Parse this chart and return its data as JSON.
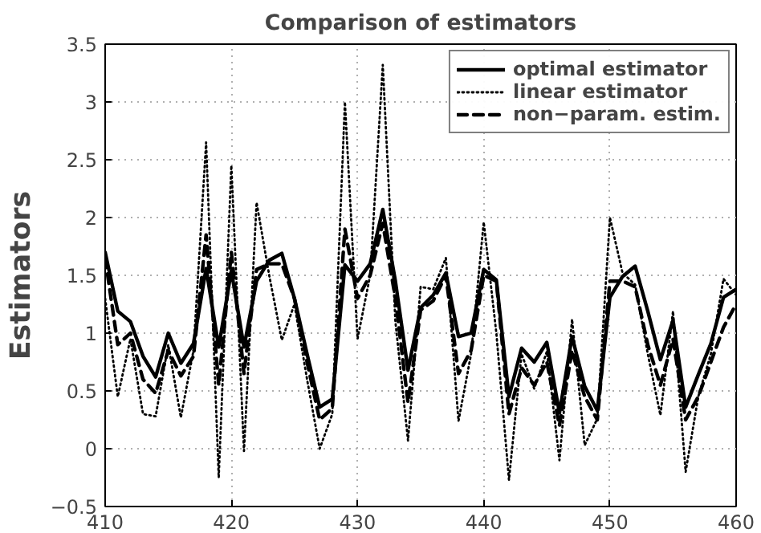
{
  "chart_data": {
    "type": "line",
    "title": "Comparison of estimators",
    "ylabel": "Estimators",
    "x": [
      410,
      411,
      412,
      413,
      414,
      415,
      416,
      417,
      418,
      419,
      420,
      421,
      422,
      423,
      424,
      425,
      426,
      427,
      428,
      429,
      430,
      431,
      432,
      433,
      434,
      435,
      436,
      437,
      438,
      439,
      440,
      441,
      442,
      443,
      444,
      445,
      446,
      447,
      448,
      449,
      450,
      451,
      452,
      453,
      454,
      455,
      456,
      457,
      458,
      459,
      460
    ],
    "series": [
      {
        "name": "optimal estimator",
        "color": "#000000",
        "line_style": "solid",
        "values": [
          1.7,
          1.19,
          1.1,
          0.8,
          0.62,
          1.0,
          0.74,
          0.91,
          1.56,
          0.88,
          1.54,
          0.88,
          1.45,
          1.63,
          1.69,
          1.3,
          0.82,
          0.36,
          0.43,
          1.59,
          1.45,
          1.6,
          2.07,
          1.45,
          0.68,
          1.22,
          1.33,
          1.52,
          0.97,
          1.0,
          1.55,
          1.46,
          0.45,
          0.87,
          0.75,
          0.92,
          0.31,
          0.97,
          0.54,
          0.33,
          1.31,
          1.49,
          1.58,
          1.19,
          0.77,
          1.11,
          0.36,
          0.64,
          0.91,
          1.31,
          1.38
        ]
      },
      {
        "name": "linear estimator",
        "color": "#000000",
        "line_style": "dotted",
        "values": [
          1.3,
          0.45,
          0.95,
          0.3,
          0.28,
          0.9,
          0.27,
          0.85,
          2.65,
          -0.25,
          2.45,
          -0.02,
          2.13,
          1.5,
          0.94,
          1.25,
          0.6,
          0.0,
          0.3,
          3.0,
          0.95,
          1.5,
          3.32,
          1.1,
          0.07,
          1.4,
          1.38,
          1.65,
          0.24,
          0.82,
          1.96,
          1.0,
          -0.27,
          0.82,
          0.52,
          0.84,
          -0.1,
          1.12,
          0.03,
          0.26,
          2.0,
          1.52,
          1.42,
          0.82,
          0.29,
          1.19,
          -0.2,
          0.45,
          0.82,
          1.47,
          1.33
        ]
      },
      {
        "name": "non−param. estim.",
        "color": "#000000",
        "line_style": "dashed",
        "values": [
          1.65,
          0.9,
          1.0,
          0.6,
          0.48,
          0.85,
          0.63,
          0.8,
          1.85,
          0.55,
          1.7,
          0.65,
          1.55,
          1.6,
          1.6,
          1.3,
          0.75,
          0.25,
          0.35,
          1.9,
          1.3,
          1.5,
          1.95,
          1.3,
          0.4,
          1.2,
          1.28,
          1.5,
          0.65,
          0.85,
          1.5,
          1.45,
          0.3,
          0.7,
          0.55,
          0.75,
          0.2,
          0.85,
          0.45,
          0.25,
          1.45,
          1.45,
          1.4,
          0.9,
          0.55,
          0.95,
          0.25,
          0.45,
          0.75,
          1.05,
          1.25
        ]
      }
    ],
    "xlim": [
      410,
      460
    ],
    "xticks": [
      410,
      420,
      430,
      440,
      450,
      460
    ],
    "ylim": [
      -0.5,
      3.5
    ],
    "yticks": [
      {
        "value": -0.5,
        "label": "−0.5"
      },
      0,
      0.5,
      1,
      1.5,
      2,
      2.5,
      3,
      3.5
    ],
    "grid": true,
    "legend": "top right"
  }
}
